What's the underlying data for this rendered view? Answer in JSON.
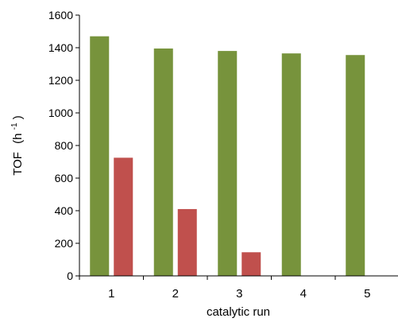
{
  "chart_data": {
    "type": "bar",
    "title": "",
    "xlabel": "catalytic run",
    "ylabel_main": "TOF",
    "ylabel_unit_base": "(h",
    "ylabel_unit_exp": "-1",
    "ylabel_unit_close": ")",
    "ylim": [
      0,
      1600
    ],
    "yticks": [
      0,
      200,
      400,
      600,
      800,
      1000,
      1200,
      1400,
      1600
    ],
    "grid": false,
    "legend": "none",
    "categories": [
      "1",
      "2",
      "3",
      "4",
      "5"
    ],
    "series": [
      {
        "color": "#77933C",
        "values": [
          1470,
          1395,
          1380,
          1365,
          1355
        ]
      },
      {
        "color": "#C0504D",
        "values": [
          725,
          410,
          145,
          0,
          0
        ]
      }
    ]
  }
}
